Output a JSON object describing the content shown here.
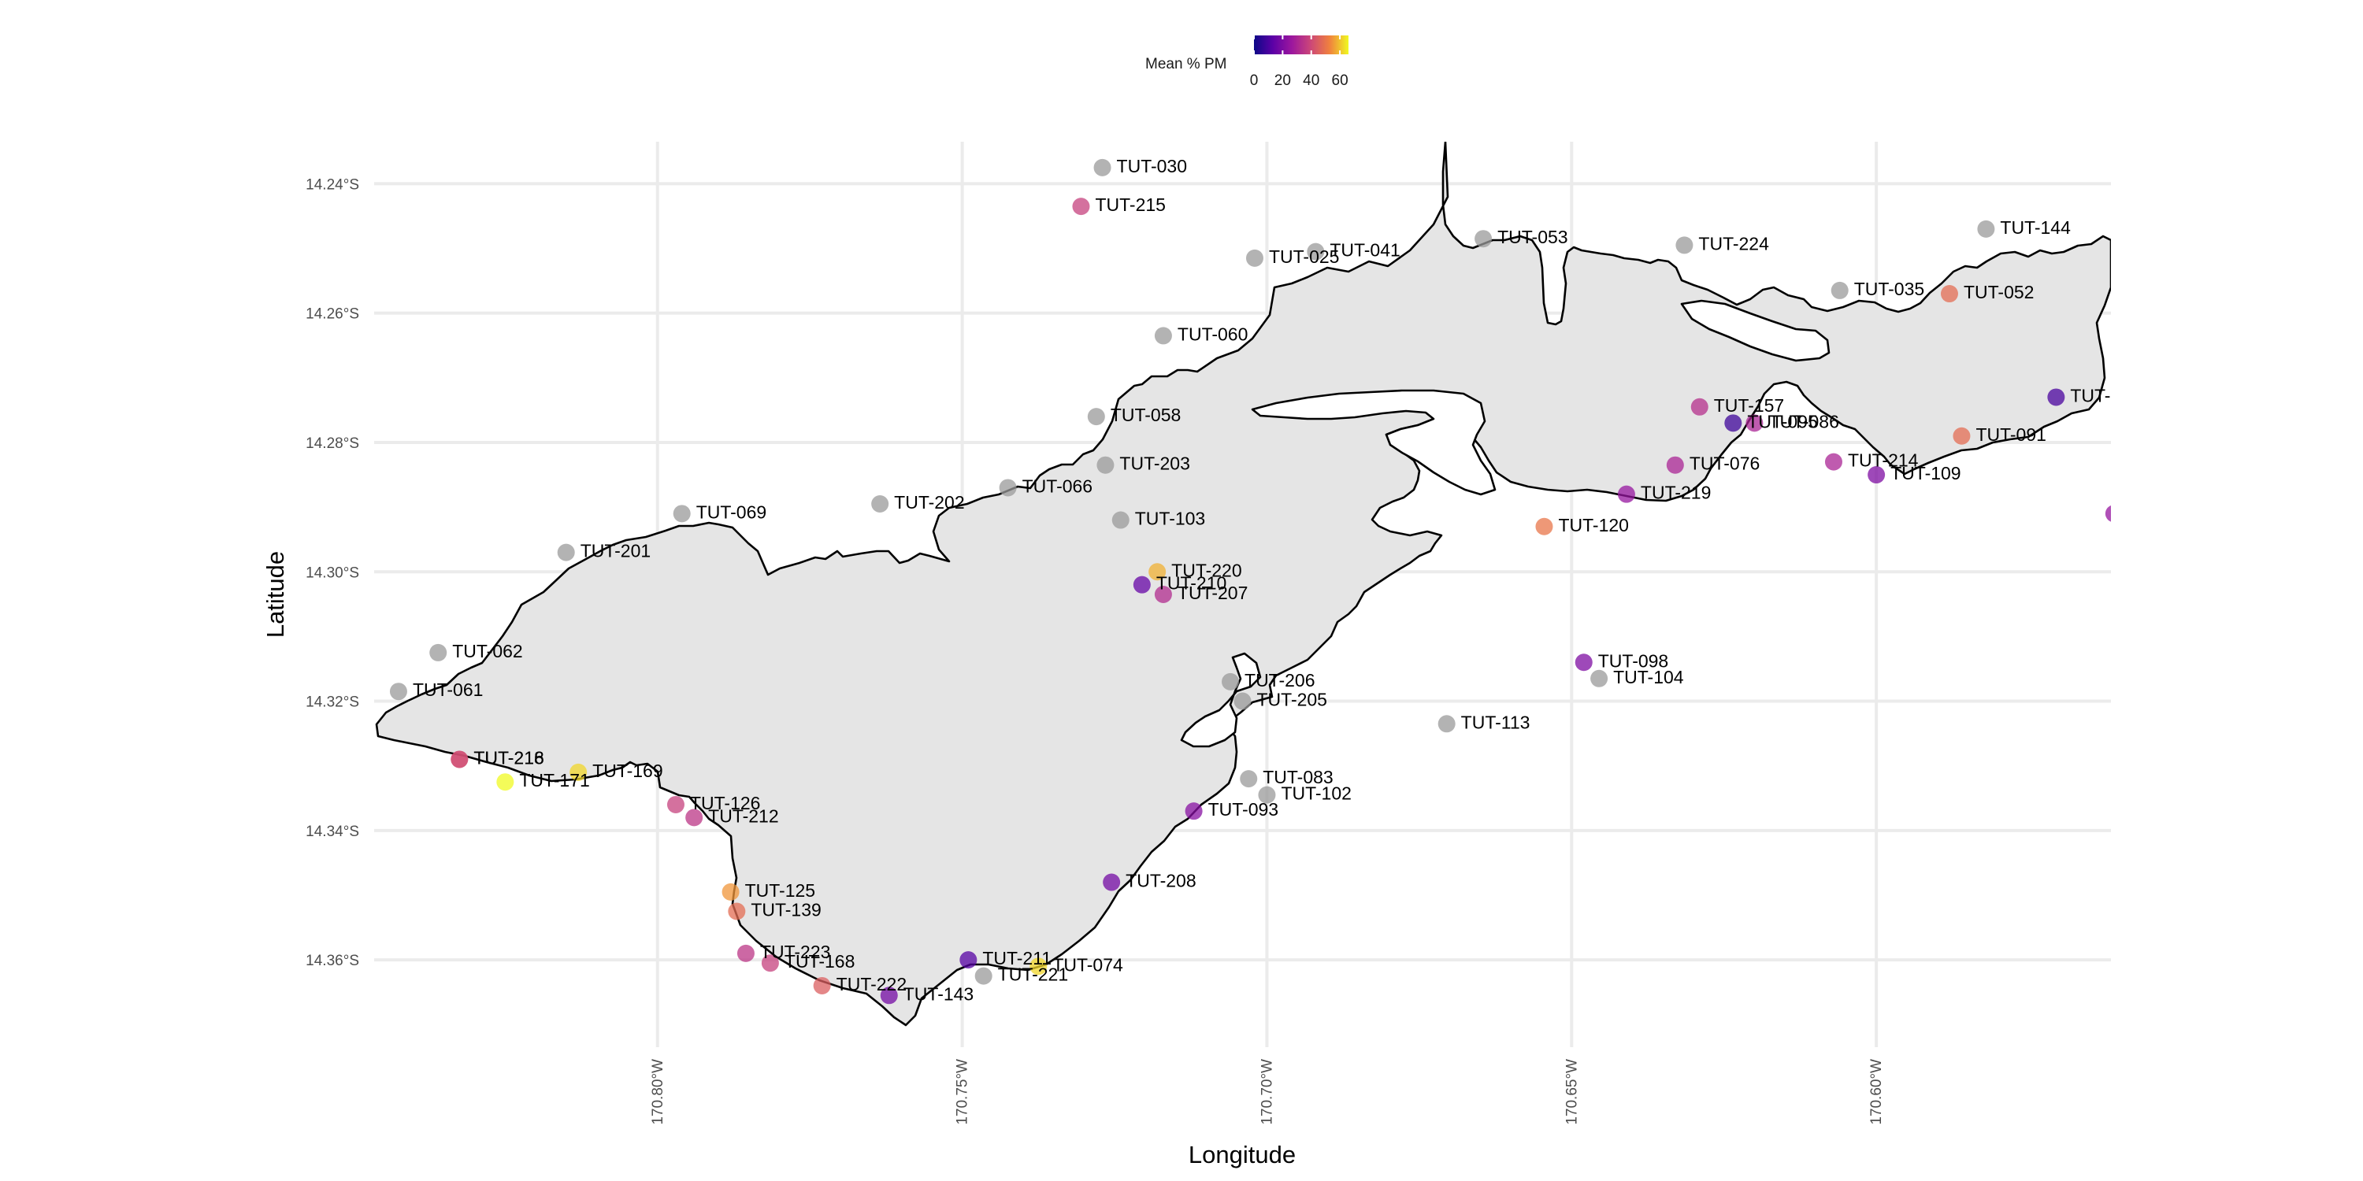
{
  "chart_data": {
    "type": "scatter",
    "title": "",
    "xlabel": "Longitude",
    "ylabel": "Latitude",
    "xlim": [
      -170.8465,
      -170.5615
    ],
    "ylim": [
      -14.3735,
      -14.2335
    ],
    "x_ticks": [
      -170.8,
      -170.75,
      -170.7,
      -170.65,
      -170.6
    ],
    "x_tick_labels": [
      "170.80°W",
      "170.75°W",
      "170.70°W",
      "170.65°W",
      "170.60°W"
    ],
    "y_ticks": [
      -14.24,
      -14.26,
      -14.28,
      -14.3,
      -14.32,
      -14.34,
      -14.36
    ],
    "y_tick_labels": [
      "14.24°S",
      "14.26°S",
      "14.28°S",
      "14.30°S",
      "14.32°S",
      "14.34°S",
      "14.36°S"
    ],
    "grid": true,
    "legend": {
      "title": "Mean % PM",
      "position": "top",
      "ticks": [
        0,
        20,
        40,
        60
      ],
      "range": [
        0,
        66
      ],
      "palette": "plasma",
      "na_color": "#999999"
    },
    "points": [
      {
        "label": "TUT-030",
        "x": -170.727,
        "y": -14.2375,
        "value": null
      },
      {
        "label": "TUT-215",
        "x": -170.7305,
        "y": -14.2435,
        "value": 38
      },
      {
        "label": "TUT-025",
        "x": -170.702,
        "y": -14.2515,
        "value": null
      },
      {
        "label": "TUT-041",
        "x": -170.692,
        "y": -14.2505,
        "value": null
      },
      {
        "label": "TUT-053",
        "x": -170.6645,
        "y": -14.2485,
        "value": null
      },
      {
        "label": "TUT-224",
        "x": -170.6315,
        "y": -14.2495,
        "value": null
      },
      {
        "label": "TUT-035",
        "x": -170.606,
        "y": -14.2565,
        "value": null
      },
      {
        "label": "TUT-052",
        "x": -170.588,
        "y": -14.257,
        "value": 48
      },
      {
        "label": "TUT-144",
        "x": -170.582,
        "y": -14.247,
        "value": null
      },
      {
        "label": "TUT-060",
        "x": -170.717,
        "y": -14.2635,
        "value": null
      },
      {
        "label": "TUT-058",
        "x": -170.728,
        "y": -14.276,
        "value": null
      },
      {
        "label": "TUT-203",
        "x": -170.7265,
        "y": -14.2835,
        "value": null
      },
      {
        "label": "TUT-066",
        "x": -170.7425,
        "y": -14.287,
        "value": null
      },
      {
        "label": "TUT-202",
        "x": -170.7635,
        "y": -14.2895,
        "value": null
      },
      {
        "label": "TUT-069",
        "x": -170.796,
        "y": -14.291,
        "value": null
      },
      {
        "label": "TUT-201",
        "x": -170.815,
        "y": -14.297,
        "value": null
      },
      {
        "label": "TUT-062",
        "x": -170.836,
        "y": -14.3125,
        "value": null
      },
      {
        "label": "TUT-061",
        "x": -170.8425,
        "y": -14.3185,
        "value": null
      },
      {
        "label": "TUT-157",
        "x": -170.629,
        "y": -14.2745,
        "value": 33
      },
      {
        "label": "TUT-095",
        "x": -170.6235,
        "y": -14.277,
        "value": 8
      },
      {
        "label": "TUT-086",
        "x": -170.62,
        "y": -14.277,
        "value": 30
      },
      {
        "label": "TUT-076",
        "x": -170.633,
        "y": -14.2835,
        "value": 30
      },
      {
        "label": "TUT-214",
        "x": -170.607,
        "y": -14.283,
        "value": 30
      },
      {
        "label": "TUT-109",
        "x": -170.6,
        "y": -14.285,
        "value": 20
      },
      {
        "label": "TUT-091",
        "x": -170.586,
        "y": -14.279,
        "value": 48
      },
      {
        "label": "TUT-",
        "x": -170.5705,
        "y": -14.273,
        "value": 10
      },
      {
        "label": "",
        "x": -170.561,
        "y": -14.291,
        "value": 25
      },
      {
        "label": "TUT-219",
        "x": -170.641,
        "y": -14.288,
        "value": 25
      },
      {
        "label": "TUT-103",
        "x": -170.724,
        "y": -14.292,
        "value": null
      },
      {
        "label": "TUT-120",
        "x": -170.6545,
        "y": -14.293,
        "value": 50
      },
      {
        "label": "TUT-220",
        "x": -170.718,
        "y": -14.3,
        "value": 58
      },
      {
        "label": "TUT-210",
        "x": -170.7205,
        "y": -14.302,
        "value": 15
      },
      {
        "label": "TUT-207",
        "x": -170.717,
        "y": -14.3035,
        "value": 32
      },
      {
        "label": "TUT-206",
        "x": -170.706,
        "y": -14.317,
        "value": null
      },
      {
        "label": "TUT-205",
        "x": -170.704,
        "y": -14.32,
        "value": null
      },
      {
        "label": "TUT-098",
        "x": -170.648,
        "y": -14.314,
        "value": 20
      },
      {
        "label": "TUT-104",
        "x": -170.6455,
        "y": -14.3165,
        "value": null
      },
      {
        "label": "TUT-113",
        "x": -170.6705,
        "y": -14.3235,
        "value": null
      },
      {
        "label": "TUT-216",
        "x": -170.8325,
        "y": -14.329,
        "value": 44
      },
      {
        "label": "TUT-218",
        "x": -170.8325,
        "y": -14.329,
        "value": 40
      },
      {
        "label": "TUT-171",
        "x": -170.825,
        "y": -14.3325,
        "value": 66
      },
      {
        "label": "TUT-169",
        "x": -170.813,
        "y": -14.331,
        "value": 62
      },
      {
        "label": "TUT-126",
        "x": -170.797,
        "y": -14.336,
        "value": 38
      },
      {
        "label": "TUT-212",
        "x": -170.794,
        "y": -14.338,
        "value": 35
      },
      {
        "label": "TUT-083",
        "x": -170.703,
        "y": -14.332,
        "value": null
      },
      {
        "label": "TUT-102",
        "x": -170.7,
        "y": -14.3345,
        "value": null
      },
      {
        "label": "TUT-093",
        "x": -170.712,
        "y": -14.337,
        "value": 22
      },
      {
        "label": "TUT-125",
        "x": -170.788,
        "y": -14.3495,
        "value": 55
      },
      {
        "label": "TUT-139",
        "x": -170.787,
        "y": -14.3525,
        "value": 48
      },
      {
        "label": "TUT-208",
        "x": -170.7255,
        "y": -14.348,
        "value": 18
      },
      {
        "label": "TUT-223",
        "x": -170.7855,
        "y": -14.359,
        "value": 35
      },
      {
        "label": "TUT-168",
        "x": -170.7815,
        "y": -14.3605,
        "value": 38
      },
      {
        "label": "TUT-222",
        "x": -170.773,
        "y": -14.364,
        "value": 45
      },
      {
        "label": "TUT-143",
        "x": -170.762,
        "y": -14.3655,
        "value": 18
      },
      {
        "label": "TUT-211",
        "x": -170.749,
        "y": -14.36,
        "value": 12
      },
      {
        "label": "TUT-221",
        "x": -170.7465,
        "y": -14.3625,
        "value": null
      },
      {
        "label": "TUT-074",
        "x": -170.7375,
        "y": -14.361,
        "value": 62
      }
    ]
  }
}
